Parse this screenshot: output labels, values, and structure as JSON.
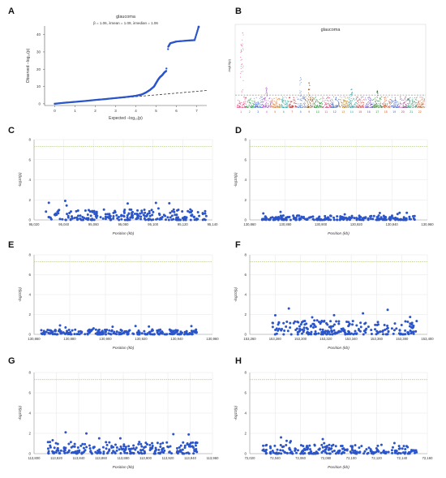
{
  "panels": [
    {
      "letter": "A"
    },
    {
      "letter": "B"
    },
    {
      "letter": "C"
    },
    {
      "letter": "D"
    },
    {
      "letter": "E"
    },
    {
      "letter": "F"
    },
    {
      "letter": "G"
    },
    {
      "letter": "H"
    }
  ],
  "colors": {
    "point": "#2b55c8",
    "threshold": "#a7c76a",
    "grid": "#e6e6e6",
    "qq_line": "#333333",
    "manhattan_thresh": "#666666"
  },
  "chart_data": [
    {
      "panel": "A",
      "type": "scatter",
      "title": "glaucoma",
      "subtitle": "β = 1.06, λmean = 1.09, λmedian = 1.06",
      "xlabel": "Expected −log₁₀(p)",
      "ylabel": "Observed −log₁₀(p)",
      "xlim": [
        -0.5,
        7.5
      ],
      "ylim": [
        -1,
        45
      ],
      "xticks": [
        "0",
        "1",
        "2",
        "3",
        "4",
        "5",
        "6",
        "7"
      ],
      "yticks": [
        "0",
        "10",
        "20",
        "30",
        "40"
      ],
      "expected_line": [
        [
          0,
          0
        ],
        [
          7.5,
          7.7
        ]
      ],
      "points": [
        [
          0,
          0
        ],
        [
          0.5,
          0.6
        ],
        [
          1,
          1.1
        ],
        [
          1.5,
          1.6
        ],
        [
          2,
          2.2
        ],
        [
          2.5,
          2.7
        ],
        [
          3,
          3.3
        ],
        [
          3.5,
          3.9
        ],
        [
          4,
          4.6
        ],
        [
          4.3,
          5.4
        ],
        [
          4.5,
          6.5
        ],
        [
          4.7,
          8
        ],
        [
          4.9,
          10
        ],
        [
          5.0,
          12
        ],
        [
          5.1,
          14
        ],
        [
          5.2,
          15.5
        ],
        [
          5.3,
          16.5
        ],
        [
          5.4,
          18
        ],
        [
          5.5,
          19
        ],
        [
          5.6,
          33
        ],
        [
          5.7,
          35
        ],
        [
          6.0,
          36
        ],
        [
          6.5,
          36.5
        ],
        [
          6.9,
          36.8
        ],
        [
          7.1,
          44.5
        ]
      ]
    },
    {
      "panel": "B",
      "type": "scatter",
      "title": "glaucoma",
      "xlabel": "",
      "ylabel": "-log10(p)",
      "chromosomes": [
        "1",
        "2",
        "3",
        "4",
        "5",
        "6",
        "7",
        "8",
        "9",
        "10",
        "11",
        "12",
        "13",
        "14",
        "15",
        "16",
        "17",
        "18",
        "19",
        "20",
        "21",
        "22"
      ],
      "threshold": 7.3,
      "peaks": [
        {
          "chrom": "1",
          "value": 45
        },
        {
          "chrom": "1",
          "value": 38
        },
        {
          "chrom": "4",
          "value": 12
        },
        {
          "chrom": "8",
          "value": 18
        },
        {
          "chrom": "9",
          "value": 15
        },
        {
          "chrom": "14",
          "value": 11
        },
        {
          "chrom": "17",
          "value": 10
        }
      ]
    },
    {
      "panel": "C",
      "type": "scatter",
      "xlabel": "Position (kb)",
      "ylabel": "-log10(p)",
      "xlim": [
        95020,
        95140
      ],
      "ylim": [
        0,
        8
      ],
      "xticks": [
        "95,020",
        "95,040",
        "95,060",
        "95,080",
        "95,100",
        "95,120",
        "95,140"
      ],
      "yticks": [
        "0",
        "2",
        "4",
        "6",
        "8"
      ],
      "threshold": 7.3,
      "point_range": [
        95028,
        95136
      ],
      "max_value": 1.9
    },
    {
      "panel": "D",
      "type": "scatter",
      "xlabel": "Position (kb)",
      "ylabel": "-log10(p)",
      "xlim": [
        130860,
        130960
      ],
      "ylim": [
        0,
        8
      ],
      "xticks": [
        "130,860",
        "130,880",
        "130,900",
        "130,920",
        "130,940",
        "130,960"
      ],
      "yticks": [
        "0",
        "2",
        "4",
        "6",
        "8"
      ],
      "threshold": 7.3,
      "point_range": [
        130867,
        130953
      ],
      "max_value": 0.8
    },
    {
      "panel": "E",
      "type": "scatter",
      "xlabel": "Position (kb)",
      "ylabel": "-log10(p)",
      "xlim": [
        130860,
        130960
      ],
      "ylim": [
        0,
        8
      ],
      "xticks": [
        "130,860",
        "130,880",
        "130,900",
        "130,920",
        "130,940",
        "130,960"
      ],
      "yticks": [
        "0",
        "2",
        "4",
        "6",
        "8"
      ],
      "threshold": 7.3,
      "point_range": [
        130864,
        130952
      ],
      "max_value": 0.9
    },
    {
      "panel": "F",
      "type": "scatter",
      "xlabel": "Position (kb)",
      "ylabel": "-log10(p)",
      "xlim": [
        153260,
        153400
      ],
      "ylim": [
        0,
        8
      ],
      "xticks": [
        "153,260",
        "153,280",
        "153,300",
        "153,320",
        "153,340",
        "153,360",
        "153,380",
        "153,400"
      ],
      "yticks": [
        "0",
        "2",
        "4",
        "6",
        "8"
      ],
      "threshold": 7.3,
      "point_range": [
        153277,
        153392
      ],
      "max_value": 2.6
    },
    {
      "panel": "G",
      "type": "scatter",
      "xlabel": "Position (kb)",
      "ylabel": "-log10(p)",
      "xlim": [
        113800,
        113960
      ],
      "ylim": [
        0,
        8
      ],
      "xticks": [
        "113,800",
        "113,820",
        "113,840",
        "113,860",
        "113,880",
        "113,900",
        "113,920",
        "113,940",
        "113,960"
      ],
      "yticks": [
        "0",
        "2",
        "4",
        "6",
        "8"
      ],
      "threshold": 7.3,
      "point_range": [
        113812,
        113948
      ],
      "max_value": 2.1
    },
    {
      "panel": "H",
      "type": "scatter",
      "xlabel": "Position (kb)",
      "ylabel": "-log10(p)",
      "xlim": [
        72020,
        72160
      ],
      "ylim": [
        0,
        8
      ],
      "xticks": [
        "72,020",
        "72,040",
        "72,060",
        "72,080",
        "72,100",
        "72,120",
        "72,140",
        "72,160"
      ],
      "yticks": [
        "0",
        "2",
        "4",
        "6",
        "8"
      ],
      "threshold": 7.3,
      "point_range": [
        72030,
        72152
      ],
      "max_value": 1.6
    }
  ]
}
